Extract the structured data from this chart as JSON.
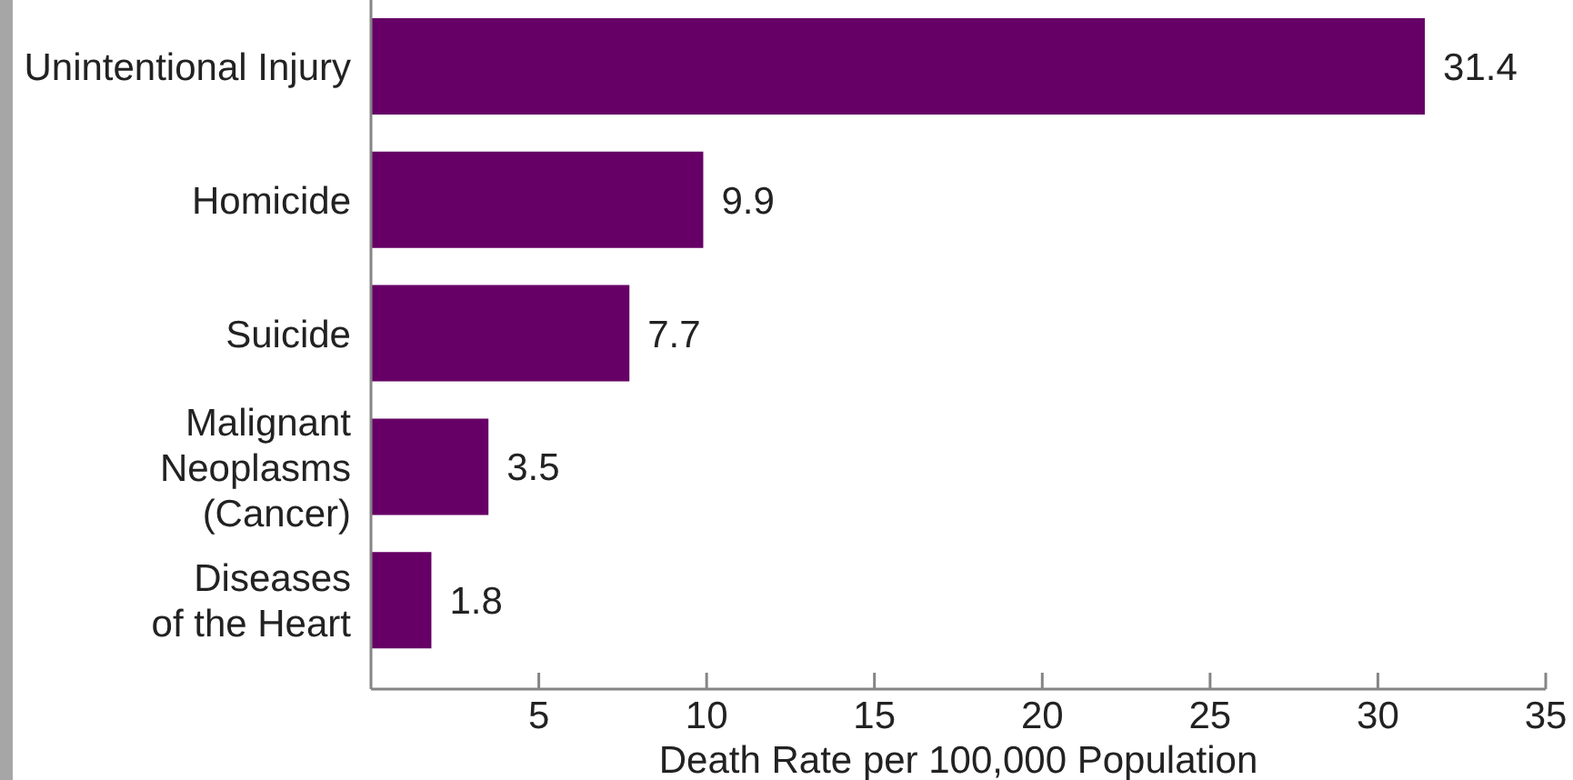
{
  "chart_data": {
    "type": "bar",
    "orientation": "horizontal",
    "categories": [
      "Unintentional Injury",
      "Homicide",
      "Suicide",
      "Malignant\nNeoplasms\n(Cancer)",
      "Diseases\nof the Heart"
    ],
    "values": [
      31.4,
      9.9,
      7.7,
      3.5,
      1.8
    ],
    "color": "#660066",
    "xlabel": "Death Rate per 100,000 Population",
    "xlim": [
      0,
      35
    ],
    "xticks": [
      5,
      10,
      15,
      20,
      25,
      30,
      35
    ],
    "data_labels": true
  }
}
